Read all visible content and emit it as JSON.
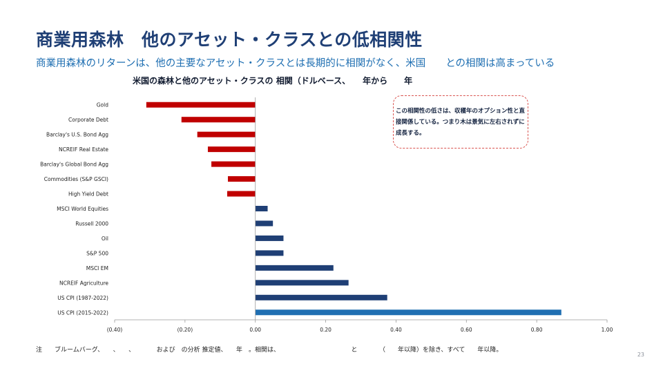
{
  "slide": {
    "title": "商業用森林　他のアセット・クラスとの低相関性",
    "subtitle": "商業用森林のリターンは、他の主要なアセット・クラスとは長期的に相関がなく、米国　　との相関は高まっている",
    "callout": "この相関性の低さは、収穫年のオプション性と直接関係している。つまり木は景気に左右されずに成長する。",
    "footnote": "注　　ブルームバーグ、　　、　　、　　　　および　の分析 推定値、　　年　。相関は、　　　　　　　　　　　　と　　　　（　　年以降）を除き、すべて　　年以降。",
    "page_number": "23"
  },
  "colors": {
    "negative": "#c00000",
    "positive": "#1f3f75",
    "highlight": "#1f6fb2",
    "axis": "#9a9a9a",
    "title": "#1f3f75",
    "subtitle": "#1f6fb2"
  },
  "chart_data": {
    "type": "bar",
    "orientation": "horizontal",
    "title": "米国の森林と他のアセット・クラスの 相関（ドルベース、　　年から　　年",
    "xlabel": "",
    "ylabel": "",
    "xlim": [
      -0.4,
      1.0
    ],
    "x_ticks": [
      -0.4,
      -0.2,
      0.0,
      0.2,
      0.4,
      0.6,
      0.8,
      1.0
    ],
    "x_tick_labels": [
      "(0.40)",
      "(0.20)",
      "0.00",
      "0.20",
      "0.40",
      "0.60",
      "0.80",
      "1.00"
    ],
    "grid": false,
    "legend": "none",
    "categories": [
      "Gold",
      "Corporate Debt",
      "Barclay's U.S. Bond Agg",
      "NCREIF Real Estate",
      "Barclay's Global Bond Agg",
      "Commodities (S&P GSCI)",
      "High Yield Debt",
      "MSCI World Equities",
      "Russell 2000",
      "Oil",
      "S&P 500",
      "MSCI EM",
      "NCREIF Agriculture",
      "US CPI (1987-2022)",
      "US CPI (2015-2022)"
    ],
    "values": [
      -0.31,
      -0.21,
      -0.165,
      -0.135,
      -0.125,
      -0.078,
      -0.08,
      0.035,
      0.05,
      0.08,
      0.08,
      0.222,
      0.265,
      0.375,
      0.87
    ],
    "highlighted_category": "US CPI (2015-2022)"
  }
}
